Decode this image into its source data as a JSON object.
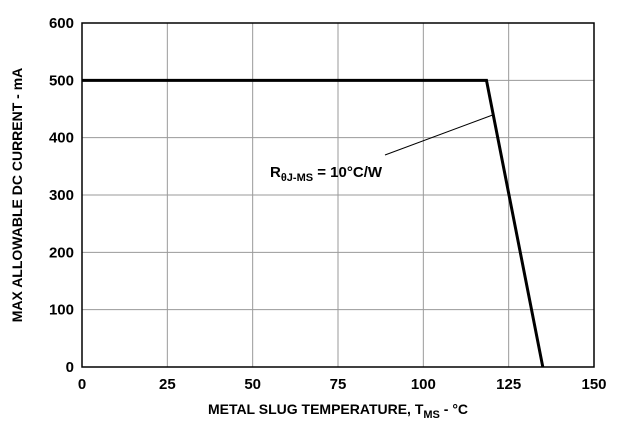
{
  "chart_data": {
    "type": "line",
    "title": "",
    "xlabel": {
      "main": "METAL SLUG TEMPERATURE, T",
      "sub": "MS",
      "suffix": " - °C"
    },
    "ylabel": "MAX ALLOWABLE DC CURRENT - mA",
    "xlim": [
      0,
      150
    ],
    "ylim": [
      0,
      600
    ],
    "xticks": [
      0,
      25,
      50,
      75,
      100,
      125,
      150
    ],
    "yticks": [
      0,
      100,
      200,
      300,
      400,
      500,
      600
    ],
    "grid": true,
    "series": [
      {
        "x": [
          0,
          118.5,
          135
        ],
        "y": [
          500,
          500,
          0
        ]
      }
    ],
    "annotations": [
      {
        "text": {
          "main": "R",
          "sub": "θJ-MS",
          "suffix": " = 10°C/W"
        },
        "points_to": {
          "x": 120.5,
          "y": 440
        }
      }
    ]
  },
  "colors": {
    "line": "#000000",
    "grid": "#9a9a9a",
    "frame": "#000000"
  }
}
